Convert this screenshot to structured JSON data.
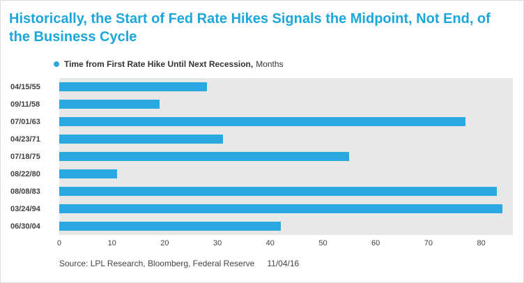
{
  "title": "Historically, the Start of Fed Rate Hikes Signals the Midpoint, Not End, of the Business Cycle",
  "legend": {
    "label": "Time from First Rate Hike Until Next Recession,",
    "unit": "Months"
  },
  "source": {
    "text": "Source: LPL Research, Bloomberg, Federal Reserve",
    "date": "11/04/16"
  },
  "colors": {
    "accent": "#29A9E0",
    "title": "#1BA6DC",
    "plot_bg": "#E8E8E8",
    "text": "#404040"
  },
  "chart_data": {
    "type": "bar",
    "orientation": "horizontal",
    "title": "Historically, the Start of Fed Rate Hikes Signals the Midpoint, Not End, of the Business Cycle",
    "categories": [
      "04/15/55",
      "09/11/58",
      "07/01/63",
      "04/23/71",
      "07/18/75",
      "08/22/80",
      "08/08/83",
      "03/24/94",
      "06/30/04"
    ],
    "values": [
      28,
      19,
      77,
      31,
      55,
      11,
      83,
      84,
      42
    ],
    "series_name": "Time from First Rate Hike Until Next Recession (Months)",
    "xlabel": "",
    "ylabel": "",
    "xlim": [
      0,
      86
    ],
    "xticks": [
      0,
      10,
      20,
      30,
      40,
      50,
      60,
      70,
      80
    ],
    "grid": false,
    "legend_position": "top"
  }
}
